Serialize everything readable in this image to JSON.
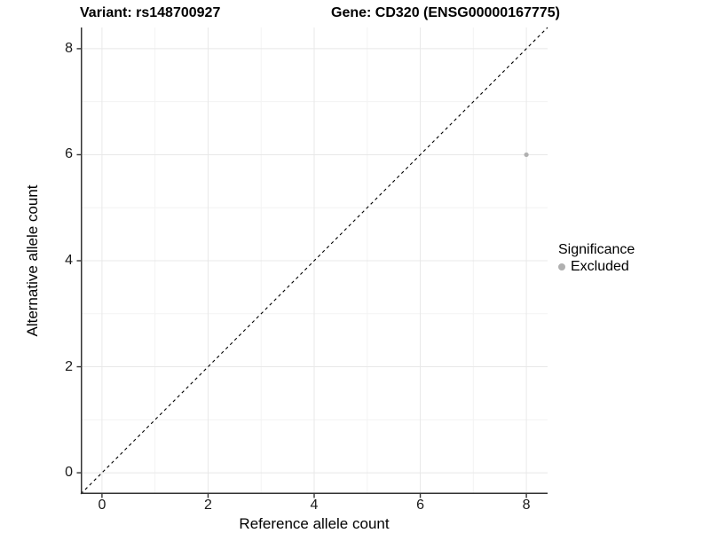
{
  "titles": {
    "variant": "Variant: rs148700927",
    "gene": "Gene: CD320 (ENSG00000167775)"
  },
  "chart_data": {
    "type": "scatter",
    "xlabel": "Reference allele count",
    "ylabel": "Alternative allele count",
    "xlim": [
      -0.4,
      8.4
    ],
    "ylim": [
      -0.4,
      8.4
    ],
    "x_ticks": [
      0,
      2,
      4,
      6,
      8
    ],
    "y_ticks": [
      0,
      2,
      4,
      6,
      8
    ],
    "x_minor_ticks": [
      1,
      3,
      5,
      7
    ],
    "y_minor_ticks": [
      1,
      3,
      5,
      7
    ],
    "grid": true,
    "points": [
      {
        "x": 8,
        "y": 6,
        "series": "Excluded"
      }
    ],
    "identity_line": {
      "slope": 1,
      "intercept": 0,
      "style": "dashed",
      "color": "#000000"
    },
    "legend": {
      "title": "Significance",
      "position": "right",
      "items": [
        {
          "label": "Excluded",
          "color": "#b0b0b0"
        }
      ]
    },
    "colors": {
      "point": "#b0b0b0",
      "grid_major": "#e8e8e8",
      "grid_minor": "#f3f3f3",
      "axis": "#333333"
    },
    "point_radius_px": 2.6
  }
}
